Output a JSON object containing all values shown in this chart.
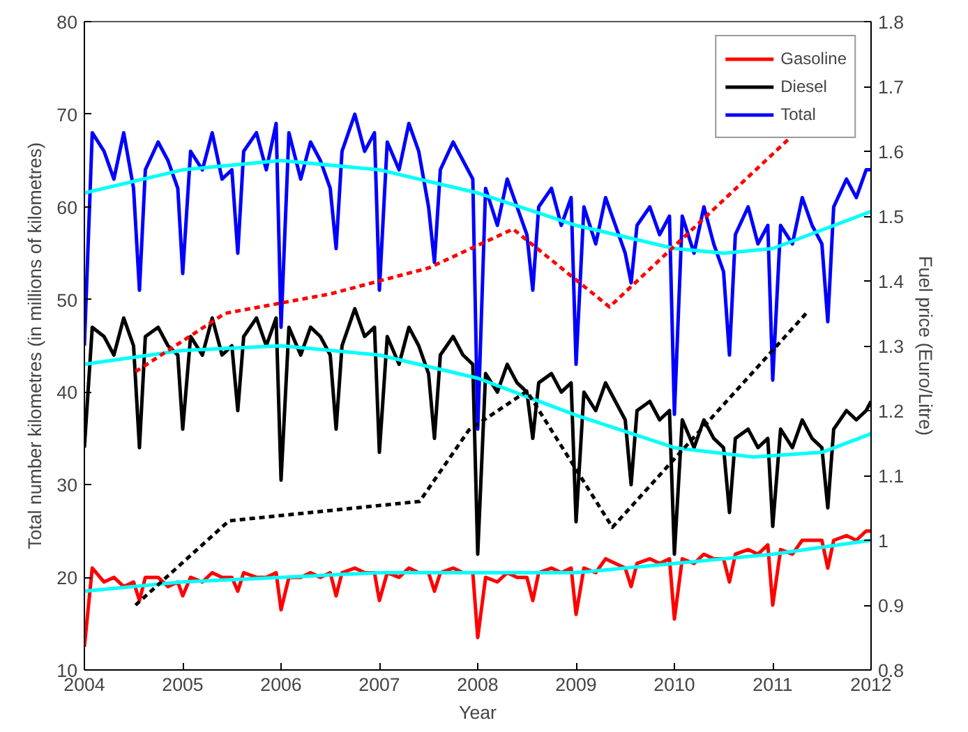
{
  "chart_data": {
    "type": "line",
    "xlabel": "Year",
    "ylabel": "Total number kilometres (in millions of kilometres)",
    "y2label": "Fuel price (Euro/Litre)",
    "xlim": [
      2004,
      2012
    ],
    "xticks": [
      2004,
      2005,
      2006,
      2007,
      2008,
      2009,
      2010,
      2011,
      2012
    ],
    "ylim": [
      10,
      80
    ],
    "yticks": [
      10,
      20,
      30,
      40,
      50,
      60,
      70,
      80
    ],
    "y2lim": [
      0.8,
      1.8
    ],
    "y2ticks": [
      0.8,
      0.9,
      1,
      1.1,
      1.2,
      1.3,
      1.4,
      1.5,
      1.6,
      1.7,
      1.8
    ],
    "grid": false,
    "legend": "top right",
    "line_style": "solid",
    "x": [
      2004.0,
      2004.08,
      2004.2,
      2004.3,
      2004.4,
      2004.5,
      2004.56,
      2004.62,
      2004.75,
      2004.85,
      2004.95,
      2005.0,
      2005.08,
      2005.2,
      2005.3,
      2005.4,
      2005.5,
      2005.56,
      2005.62,
      2005.75,
      2005.85,
      2005.95,
      2006.0,
      2006.08,
      2006.2,
      2006.3,
      2006.4,
      2006.5,
      2006.56,
      2006.62,
      2006.75,
      2006.85,
      2006.95,
      2007.0,
      2007.08,
      2007.2,
      2007.3,
      2007.4,
      2007.5,
      2007.56,
      2007.62,
      2007.75,
      2007.85,
      2007.95,
      2008.0,
      2008.08,
      2008.2,
      2008.3,
      2008.4,
      2008.5,
      2008.56,
      2008.62,
      2008.75,
      2008.85,
      2008.95,
      2009.0,
      2009.08,
      2009.2,
      2009.3,
      2009.4,
      2009.5,
      2009.56,
      2009.62,
      2009.75,
      2009.85,
      2009.95,
      2010.0,
      2010.08,
      2010.2,
      2010.3,
      2010.4,
      2010.5,
      2010.56,
      2010.62,
      2010.75,
      2010.85,
      2010.95,
      2011.0,
      2011.08,
      2011.2,
      2011.3,
      2011.4,
      2011.5,
      2011.56,
      2011.62,
      2011.75,
      2011.85,
      2011.95,
      2012.0
    ],
    "series": [
      {
        "name": "Gasoline",
        "color": "#ff0000",
        "values": [
          12.5,
          21,
          19.5,
          20,
          19,
          19.5,
          17.5,
          20,
          20,
          19,
          19.5,
          18,
          20,
          19.5,
          20.5,
          20,
          20,
          18.5,
          20.5,
          20,
          20,
          20.5,
          16.5,
          20,
          20,
          20.5,
          20,
          20.5,
          18,
          20.5,
          21,
          20.5,
          20.5,
          17.5,
          20.5,
          20,
          21,
          20.5,
          20.5,
          18.5,
          20.5,
          21,
          20.5,
          20.5,
          13.5,
          20,
          19.5,
          20.5,
          20,
          20,
          17.5,
          20.5,
          21,
          20.5,
          21,
          16,
          21,
          20.5,
          22,
          21.5,
          21,
          19,
          21.5,
          22,
          21.5,
          22,
          15.5,
          22,
          21.5,
          22.5,
          22,
          22,
          19.5,
          22.5,
          23,
          22.5,
          23.5,
          17,
          23,
          22.5,
          24,
          24,
          24,
          21,
          24,
          24.5,
          24,
          25,
          25
        ]
      },
      {
        "name": "Diesel",
        "color": "#000000",
        "values": [
          34,
          47,
          46,
          44,
          48,
          45,
          34,
          46,
          47,
          45,
          44,
          36,
          46,
          44,
          48,
          44,
          45,
          38,
          46,
          48,
          45,
          48,
          30.5,
          47,
          44,
          47,
          46,
          44,
          36,
          45,
          49,
          46,
          47,
          33.5,
          46,
          43,
          47,
          45,
          42,
          35,
          44,
          46,
          44,
          43,
          22.5,
          42,
          40,
          43,
          41,
          40,
          35,
          41,
          42,
          40,
          41,
          26,
          40,
          38,
          41,
          39,
          37,
          30,
          38,
          39,
          37,
          38,
          22.5,
          37,
          34,
          37,
          35,
          34,
          27,
          35,
          36,
          34,
          35,
          25.5,
          36,
          34,
          37,
          35,
          34,
          27.5,
          36,
          38,
          37,
          38,
          39
        ]
      },
      {
        "name": "Total",
        "color": "#0000ff",
        "values": [
          45,
          68,
          66,
          63,
          68,
          62,
          51,
          64,
          67,
          65,
          62,
          52.8,
          66,
          64,
          68,
          63,
          64,
          55,
          66,
          68,
          64,
          69,
          47,
          68,
          63,
          67,
          65,
          62,
          55.5,
          66,
          70,
          66,
          68,
          51,
          67,
          64,
          69,
          66,
          60,
          54,
          64,
          67,
          65,
          63,
          36,
          62,
          58,
          63,
          60,
          57,
          51,
          60,
          62,
          58,
          61,
          43,
          60,
          56,
          61,
          58,
          55,
          51.8,
          58,
          60,
          57,
          59,
          37.6,
          59,
          55,
          60,
          56,
          53,
          44,
          57,
          60,
          56,
          58,
          41.3,
          58,
          56,
          61,
          58,
          56,
          47.6,
          60,
          63,
          61,
          64,
          64
        ]
      },
      {
        "color": "#00ffff",
        "x": [
          2004,
          2005,
          2006,
          2007,
          2008,
          2009,
          2010,
          2010.5,
          2011,
          2012
        ],
        "values": [
          61.5,
          64,
          65,
          64,
          61.5,
          58,
          55.5,
          55,
          55.5,
          59.5
        ]
      },
      {
        "color": "#00ffff",
        "x": [
          2004,
          2005,
          2006,
          2007,
          2008,
          2009,
          2010,
          2010.8,
          2011.5,
          2012
        ],
        "values": [
          43,
          44.5,
          45,
          44,
          41.5,
          37.5,
          34,
          33,
          33.5,
          35.5
        ]
      },
      {
        "color": "#00ffff",
        "x": [
          2004,
          2005,
          2006,
          2007,
          2008,
          2009,
          2010,
          2011,
          2012
        ],
        "values": [
          18.5,
          19.5,
          20,
          20.5,
          20.5,
          20.5,
          21.5,
          22.5,
          24
        ]
      },
      {
        "color": "#ff0000",
        "axis": "y2",
        "line_style": "dashed",
        "x": [
          2004.52,
          2005.43,
          2006.5,
          2007.5,
          2008.36,
          2009.34,
          2011.17
        ],
        "values": [
          1.26,
          1.35,
          1.38,
          1.42,
          1.48,
          1.36,
          1.62
        ]
      },
      {
        "color": "#000000",
        "axis": "y2",
        "line_style": "dashed",
        "x": [
          2004.52,
          2005.47,
          2007.41,
          2007.91,
          2008.5,
          2009.37,
          2011.34
        ],
        "values": [
          0.9,
          1.03,
          1.06,
          1.17,
          1.23,
          1.02,
          1.35
        ]
      }
    ]
  }
}
